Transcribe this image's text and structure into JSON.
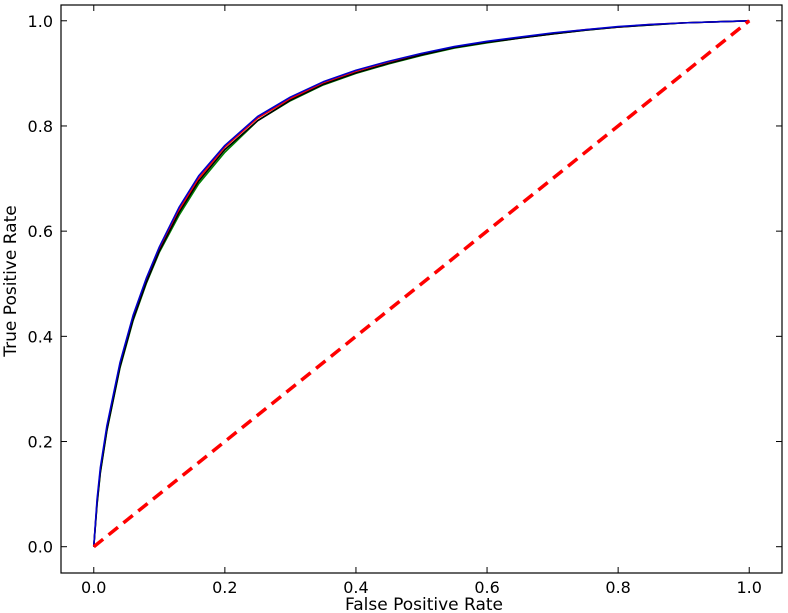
{
  "chart_data": {
    "type": "line",
    "title": "",
    "xlabel": "False Positive Rate",
    "ylabel": "True Positive Rate",
    "xlim": [
      -0.05,
      1.05
    ],
    "ylim": [
      -0.05,
      1.03
    ],
    "grid": false,
    "x_ticks": [
      0.0,
      0.2,
      0.4,
      0.6,
      0.8,
      1.0
    ],
    "y_ticks": [
      0.0,
      0.2,
      0.4,
      0.6,
      0.8,
      1.0
    ],
    "x_tick_labels": [
      "0.0",
      "0.2",
      "0.4",
      "0.6",
      "0.8",
      "1.0"
    ],
    "y_tick_labels": [
      "0.0",
      "0.2",
      "0.4",
      "0.6",
      "0.8",
      "1.0"
    ],
    "series": [
      {
        "color": "#008000",
        "style": "solid",
        "x": [
          0,
          0.005,
          0.01,
          0.02,
          0.04,
          0.06,
          0.08,
          0.1,
          0.13,
          0.16,
          0.2,
          0.25,
          0.3,
          0.35,
          0.4,
          0.45,
          0.5,
          0.55,
          0.6,
          0.65,
          0.7,
          0.75,
          0.8,
          0.85,
          0.9,
          0.95,
          1.0
        ],
        "y": [
          0,
          0.08,
          0.14,
          0.22,
          0.34,
          0.43,
          0.5,
          0.56,
          0.63,
          0.69,
          0.75,
          0.81,
          0.848,
          0.878,
          0.9,
          0.918,
          0.934,
          0.948,
          0.958,
          0.967,
          0.975,
          0.982,
          0.988,
          0.992,
          0.996,
          0.998,
          1.0
        ]
      },
      {
        "color": "#ff0000",
        "style": "solid",
        "x": [
          0,
          0.005,
          0.01,
          0.02,
          0.04,
          0.06,
          0.08,
          0.1,
          0.13,
          0.16,
          0.2,
          0.25,
          0.3,
          0.35,
          0.4,
          0.45,
          0.5,
          0.55,
          0.6,
          0.65,
          0.7,
          0.75,
          0.8,
          0.85,
          0.9,
          0.95,
          1.0
        ],
        "y": [
          0,
          0.085,
          0.145,
          0.225,
          0.345,
          0.435,
          0.505,
          0.565,
          0.64,
          0.7,
          0.76,
          0.815,
          0.852,
          0.882,
          0.904,
          0.922,
          0.937,
          0.95,
          0.96,
          0.968,
          0.976,
          0.983,
          0.988,
          0.993,
          0.996,
          0.998,
          1.0
        ]
      },
      {
        "color": "#000000",
        "style": "solid",
        "x": [
          0,
          0.005,
          0.01,
          0.02,
          0.04,
          0.06,
          0.08,
          0.1,
          0.13,
          0.16,
          0.2,
          0.25,
          0.3,
          0.35,
          0.4,
          0.45,
          0.5,
          0.55,
          0.6,
          0.65,
          0.7,
          0.75,
          0.8,
          0.85,
          0.9,
          0.95,
          1.0
        ],
        "y": [
          0,
          0.082,
          0.142,
          0.222,
          0.342,
          0.432,
          0.502,
          0.562,
          0.635,
          0.695,
          0.755,
          0.81,
          0.849,
          0.879,
          0.901,
          0.919,
          0.935,
          0.949,
          0.959,
          0.967,
          0.975,
          0.982,
          0.988,
          0.992,
          0.996,
          0.998,
          1.0
        ]
      },
      {
        "color": "#0000cc",
        "style": "solid",
        "x": [
          0,
          0.005,
          0.01,
          0.02,
          0.04,
          0.06,
          0.08,
          0.1,
          0.13,
          0.16,
          0.2,
          0.25,
          0.3,
          0.35,
          0.4,
          0.45,
          0.5,
          0.55,
          0.6,
          0.65,
          0.7,
          0.75,
          0.8,
          0.85,
          0.9,
          0.95,
          1.0
        ],
        "y": [
          0,
          0.09,
          0.15,
          0.23,
          0.35,
          0.44,
          0.51,
          0.57,
          0.645,
          0.705,
          0.763,
          0.818,
          0.855,
          0.884,
          0.906,
          0.923,
          0.938,
          0.951,
          0.961,
          0.969,
          0.977,
          0.983,
          0.989,
          0.993,
          0.996,
          0.998,
          1.0
        ]
      },
      {
        "color": "#ff0000",
        "style": "dashed",
        "x": [
          0,
          1
        ],
        "y": [
          0,
          1
        ]
      }
    ]
  }
}
